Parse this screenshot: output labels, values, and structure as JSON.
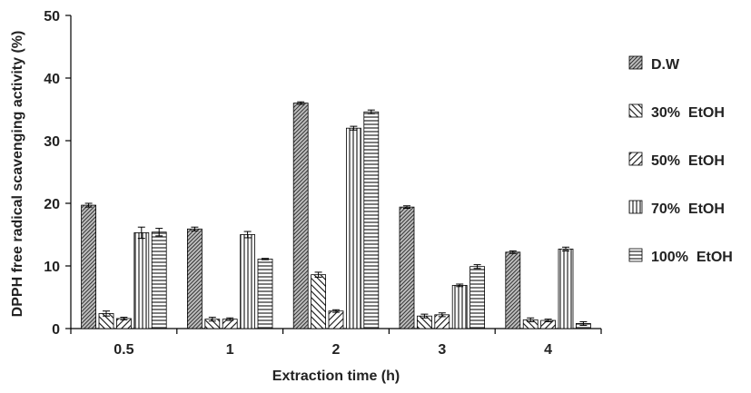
{
  "chart_data": {
    "type": "bar",
    "xlabel": "Extraction time (h)",
    "ylabel": "DPPH free radical scavenging activity (%)",
    "ylim": [
      0,
      50
    ],
    "yticks": [
      0,
      10,
      20,
      30,
      40,
      50
    ],
    "grid": false,
    "legend_position": "right",
    "categories": [
      "0.5",
      "1",
      "2",
      "3",
      "4"
    ],
    "series": [
      {
        "name": "D.W",
        "pattern": "dense-diagonal-cross",
        "values": [
          19.7,
          15.9,
          36.0,
          19.4,
          12.2
        ],
        "errors": [
          0.3,
          0.3,
          0.2,
          0.2,
          0.2
        ]
      },
      {
        "name": "30%  EtOH",
        "pattern": "backslash-hatch",
        "values": [
          2.4,
          1.5,
          8.6,
          2.0,
          1.4
        ],
        "errors": [
          0.4,
          0.3,
          0.4,
          0.3,
          0.3
        ]
      },
      {
        "name": "50%  EtOH",
        "pattern": "slash-hatch",
        "values": [
          1.6,
          1.5,
          2.8,
          2.2,
          1.3
        ],
        "errors": [
          0.2,
          0.2,
          0.2,
          0.3,
          0.2
        ]
      },
      {
        "name": "70%  EtOH",
        "pattern": "vertical-lines",
        "values": [
          15.3,
          15.0,
          32.0,
          6.9,
          12.7
        ],
        "errors": [
          0.9,
          0.5,
          0.3,
          0.2,
          0.3
        ]
      },
      {
        "name": "100%  EtOH",
        "pattern": "horizontal-lines",
        "values": [
          15.4,
          11.1,
          34.6,
          9.9,
          0.8
        ],
        "errors": [
          0.6,
          0.1,
          0.3,
          0.3,
          0.3
        ]
      }
    ]
  }
}
